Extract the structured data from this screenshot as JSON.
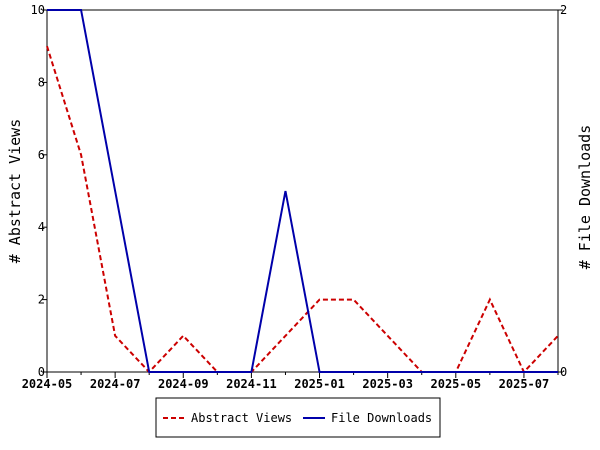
{
  "chart_data": {
    "type": "line",
    "categories": [
      "2024-05",
      null,
      "2024-07",
      null,
      "2024-09",
      null,
      "2024-11",
      null,
      "2025-01",
      null,
      "2025-03",
      null,
      "2025-05",
      null,
      "2025-07",
      null
    ],
    "series": [
      {
        "name": "Abstract Views",
        "color": "#cc0000",
        "dash": true,
        "values": [
          9,
          6,
          1,
          0,
          1,
          0,
          0,
          1,
          2,
          2,
          1,
          0,
          0,
          2,
          0,
          1
        ]
      },
      {
        "name": "File Downloads",
        "color": "#0000aa",
        "axis": "y2",
        "values": [
          2,
          2,
          1,
          0,
          0,
          0,
          0,
          1,
          0,
          0,
          0,
          0,
          0,
          0,
          0,
          0
        ]
      }
    ],
    "y_label": "# Abstract Views",
    "y2_label": "# File Downloads",
    "ylim": [
      0,
      10
    ],
    "yticks": [
      0,
      2,
      4,
      6,
      8,
      10
    ],
    "y2lim": [
      0,
      2
    ],
    "y2ticks": [
      0,
      2
    ],
    "legend": "bottom"
  }
}
